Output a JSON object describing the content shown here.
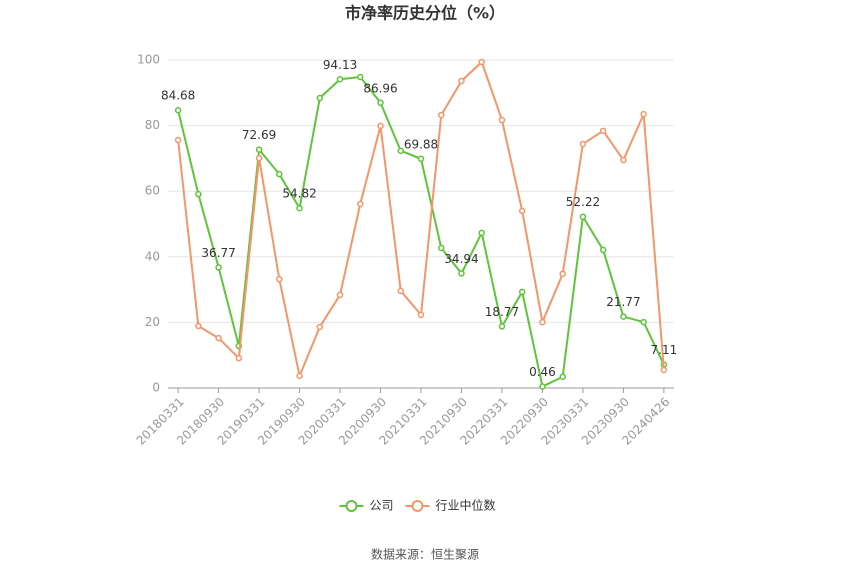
{
  "chart_data": {
    "type": "line",
    "title": "市净率历史分位（%）",
    "source": "数据来源：恒生聚源",
    "categories": [
      "20180331",
      null,
      "20180930",
      null,
      "20190331",
      null,
      "20190930",
      null,
      "20200331",
      null,
      "20200930",
      null,
      "20210331",
      null,
      "20210930",
      null,
      "20220331",
      null,
      "20220930",
      null,
      "20230331",
      null,
      "20230930",
      null,
      "20240426"
    ],
    "series": [
      {
        "name": "公司",
        "color": "#5ec43a",
        "values": [
          84.68,
          59.1,
          36.77,
          12.8,
          72.69,
          65.2,
          54.82,
          88.4,
          94.13,
          94.8,
          86.96,
          72.3,
          69.88,
          42.7,
          34.94,
          47.3,
          18.77,
          29.3,
          0.46,
          3.4,
          52.22,
          42.1,
          21.77,
          20.1,
          7.11
        ]
      },
      {
        "name": "行业中位数",
        "color": "#f4956a",
        "values": [
          75.6,
          18.9,
          15.2,
          9.1,
          70.1,
          33.2,
          3.7,
          18.6,
          28.4,
          56.1,
          79.9,
          29.6,
          22.3,
          83.2,
          93.6,
          99.4,
          81.7,
          54.0,
          20.1,
          34.8,
          74.4,
          78.4,
          69.5,
          83.5,
          5.5
        ]
      }
    ],
    "ylim": [
      0,
      100
    ],
    "yticks": [
      0,
      20,
      40,
      60,
      80,
      100
    ],
    "grid": true,
    "legend": "bottom"
  }
}
